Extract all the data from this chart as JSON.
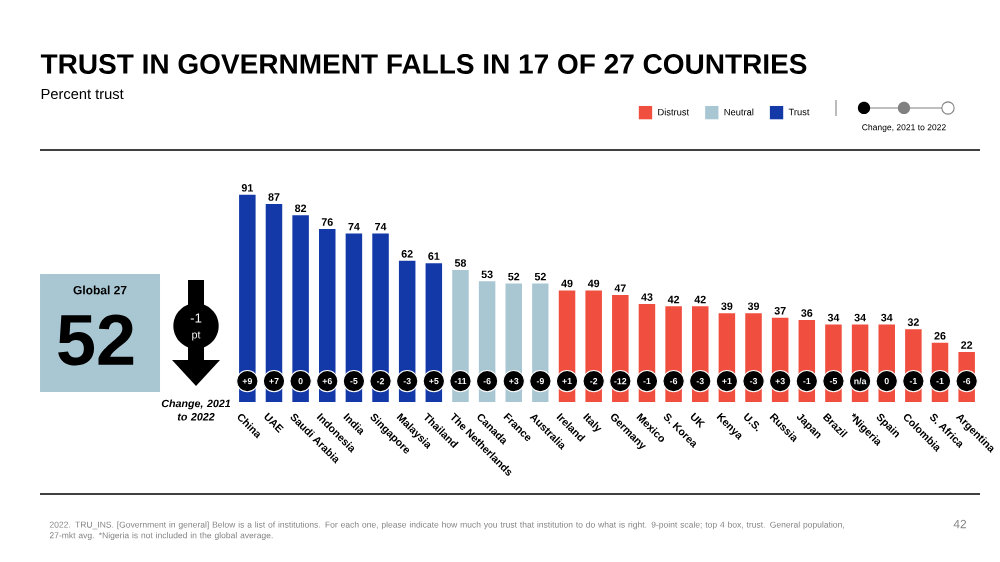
{
  "chart_data": {
    "type": "bar",
    "title": "TRUST IN GOVERNMENT FALLS IN 17 OF 27 COUNTRIES",
    "subtitle": "Percent trust",
    "categories": [
      "China",
      "UAE",
      "Saudi Arabia",
      "Indonesia",
      "India",
      "Singapore",
      "Malaysia",
      "Thailand",
      "The Netherlands",
      "Canada",
      "France",
      "Australia",
      "Ireland",
      "Italy",
      "Germany",
      "Mexico",
      "S. Korea",
      "UK",
      "Kenya",
      "U.S.",
      "Russia",
      "Japan",
      "Brazil",
      "*Nigeria",
      "Spain",
      "Colombia",
      "S. Africa",
      "Argentina"
    ],
    "series": [
      {
        "name": "Distrust",
        "color": "#f04e3e",
        "values": [
          null,
          null,
          null,
          null,
          null,
          null,
          null,
          null,
          null,
          null,
          null,
          null,
          49,
          49,
          47,
          43,
          42,
          42,
          39,
          39,
          37,
          36,
          34,
          34,
          34,
          32,
          26,
          22
        ]
      },
      {
        "name": "Neutral",
        "color": "#a9c7d3",
        "values": [
          null,
          null,
          null,
          null,
          null,
          null,
          null,
          null,
          58,
          53,
          52,
          52,
          null,
          null,
          null,
          null,
          null,
          null,
          null,
          null,
          null,
          null,
          null,
          null,
          null,
          null,
          null,
          null
        ]
      },
      {
        "name": "Trust",
        "color": "#1338a8",
        "values": [
          91,
          87,
          82,
          76,
          74,
          74,
          62,
          61,
          null,
          null,
          null,
          null,
          null,
          null,
          null,
          null,
          null,
          null,
          null,
          null,
          null,
          null,
          null,
          null,
          null,
          null,
          null,
          null
        ]
      }
    ],
    "data_labels": true,
    "legend": "top right",
    "tick_labels": "x",
    "annotations": [
      "Global 27",
      "52",
      "-1",
      "pt",
      "Change, 2021 to 2022",
      "Change, 2021 to 2022",
      "2022. TRU_INS. [Government in general] Below is a list of institutions. For each one, please indicate how much you trust that institution to do what is right. 9-point scale; top 4 box, trust. General population, 27-mkt avg. *Nigeria is not included in the global average.",
      "42",
      {
        "text": "+9",
        "x": "China"
      },
      {
        "text": "+7",
        "x": "UAE"
      },
      {
        "text": "0",
        "x": "Saudi Arabia"
      },
      {
        "text": "+6",
        "x": "Indonesia"
      },
      {
        "text": "-5",
        "x": "India"
      },
      {
        "text": "-2",
        "x": "Singapore"
      },
      {
        "text": "-3",
        "x": "Malaysia"
      },
      {
        "text": "+5",
        "x": "Thailand"
      },
      {
        "text": "-11",
        "x": "The Netherlands"
      },
      {
        "text": "-6",
        "x": "Canada"
      },
      {
        "text": "+3",
        "x": "France"
      },
      {
        "text": "-9",
        "x": "Australia"
      },
      {
        "text": "+1",
        "x": "Ireland"
      },
      {
        "text": "-2",
        "x": "Italy"
      },
      {
        "text": "-12",
        "x": "Germany"
      },
      {
        "text": "-1",
        "x": "Mexico"
      },
      {
        "text": "-6",
        "x": "S. Korea"
      },
      {
        "text": "-3",
        "x": "UK"
      },
      {
        "text": "+1",
        "x": "Kenya"
      },
      {
        "text": "-3",
        "x": "U.S."
      },
      {
        "text": "+3",
        "x": "Russia"
      },
      {
        "text": "-1",
        "x": "Japan"
      },
      {
        "text": "-5",
        "x": "Brazil"
      },
      {
        "text": "n/a",
        "x": "*Nigeria"
      },
      {
        "text": "0",
        "x": "Spain"
      },
      {
        "text": "-1",
        "x": "Colombia"
      },
      {
        "text": "-1",
        "x": "S. Africa"
      },
      {
        "text": "-6",
        "x": "Argentina"
      }
    ]
  }
}
